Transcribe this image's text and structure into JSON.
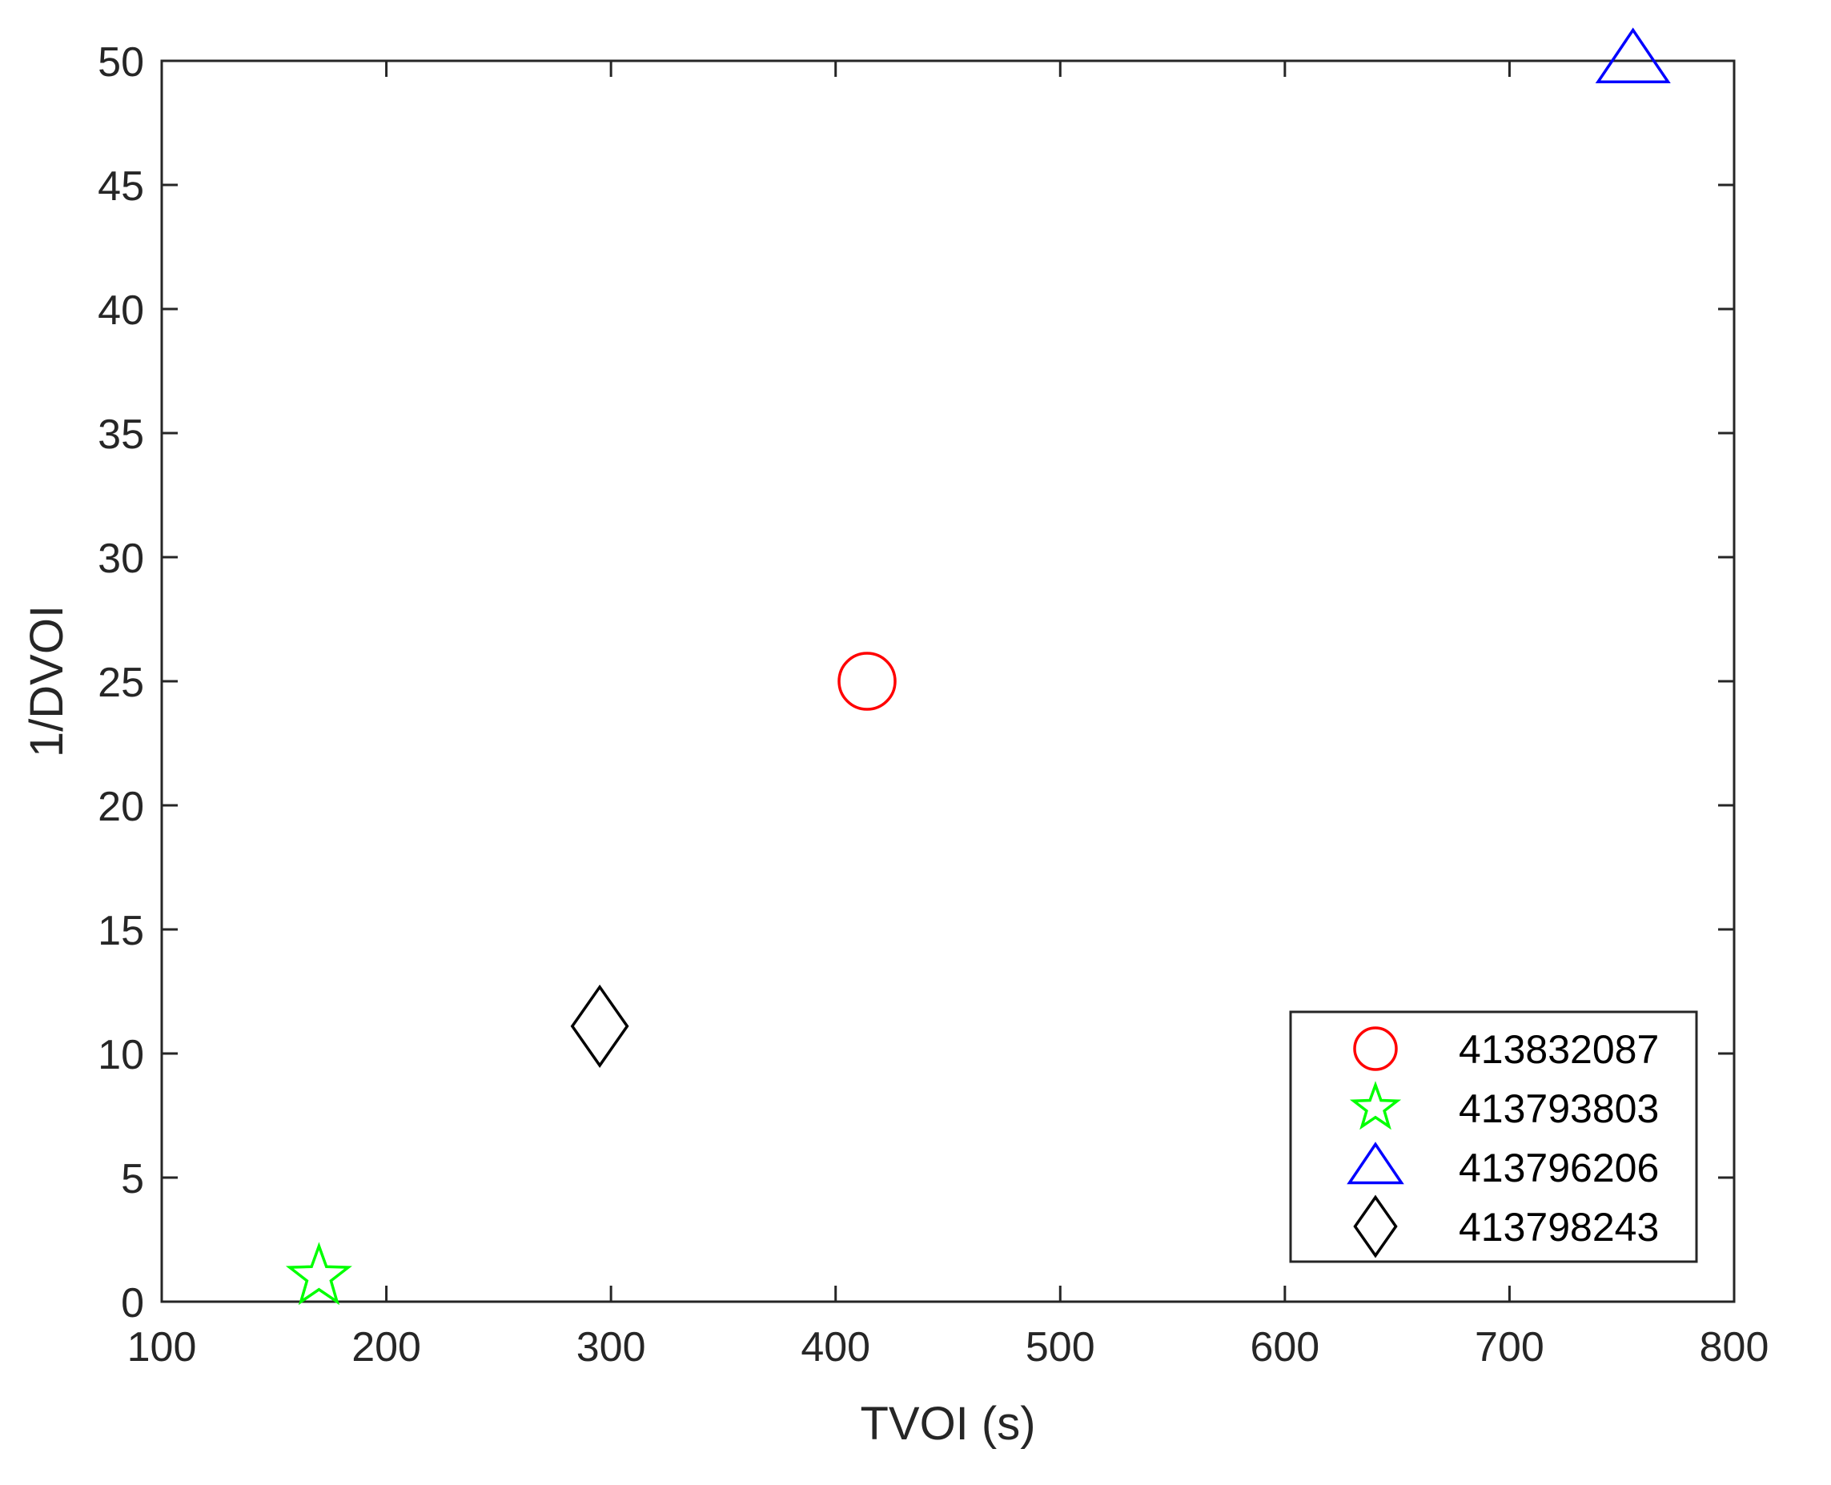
{
  "chart_data": {
    "type": "scatter",
    "xlabel": "TVOI (s)",
    "ylabel": "1/DVOI",
    "xlim": [
      100,
      800
    ],
    "ylim": [
      0,
      50
    ],
    "xticks": [
      100,
      200,
      300,
      400,
      500,
      600,
      700,
      800
    ],
    "yticks": [
      0,
      5,
      10,
      15,
      20,
      25,
      30,
      35,
      40,
      45,
      50
    ],
    "grid": false,
    "legend_position": "bottom-right",
    "series": [
      {
        "name": "413832087",
        "marker": "circle",
        "color": "#ff0000",
        "x": 414,
        "y": 25
      },
      {
        "name": "413793803",
        "marker": "star",
        "color": "#00ff00",
        "x": 170,
        "y": 1
      },
      {
        "name": "413796206",
        "marker": "triangle",
        "color": "#0000ff",
        "x": 755,
        "y": 50
      },
      {
        "name": "413798243",
        "marker": "diamond",
        "color": "#000000",
        "x": 295,
        "y": 11.1
      }
    ]
  }
}
